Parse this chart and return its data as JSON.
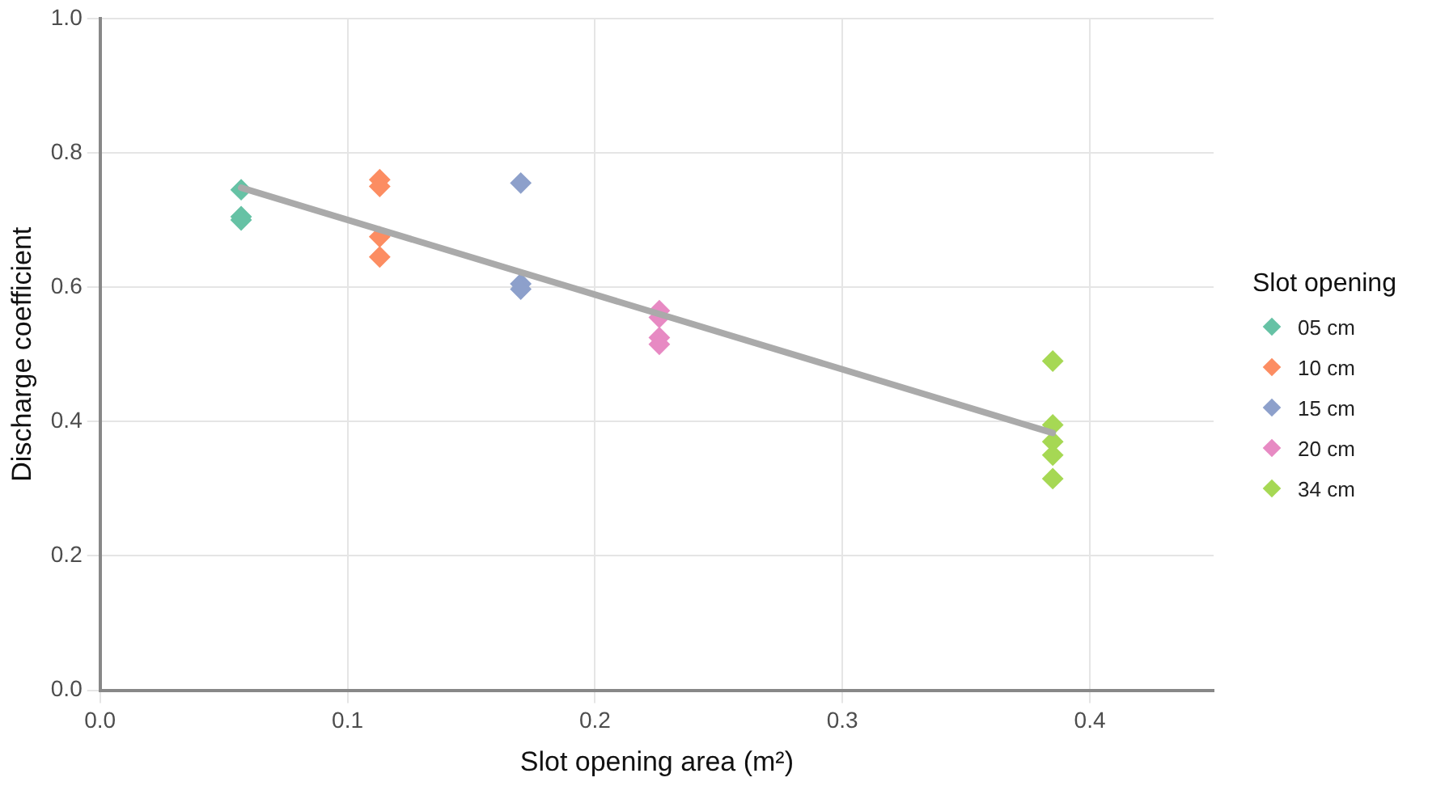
{
  "chart_data": {
    "type": "scatter",
    "xlabel": "Slot opening area (m²)",
    "ylabel": "Discharge coefficient",
    "legend_title": "Slot opening",
    "legend": "right",
    "grid": true,
    "marker": "diamond",
    "xlim": [
      0,
      0.45
    ],
    "xticks": [
      {
        "value": 0,
        "label": "0.0"
      },
      0.1,
      0.2,
      0.3,
      0.4
    ],
    "ylim": [
      0,
      1
    ],
    "yticks": [
      {
        "value": 0,
        "label": "0.0"
      },
      0.2,
      0.4,
      0.6,
      0.8,
      {
        "value": 1,
        "label": "1.0"
      }
    ],
    "series": [
      {
        "name": "05 cm",
        "color": "#66c2a5",
        "x": [
          0.057,
          0.057,
          0.057
        ],
        "values": [
          0.745,
          0.705,
          0.7
        ]
      },
      {
        "name": "10 cm",
        "color": "#fc8d62",
        "x": [
          0.113,
          0.113,
          0.113,
          0.113
        ],
        "values": [
          0.76,
          0.75,
          0.675,
          0.645
        ]
      },
      {
        "name": "15 cm",
        "color": "#8da0cb",
        "x": [
          0.17,
          0.17,
          0.17
        ],
        "values": [
          0.755,
          0.605,
          0.597
        ]
      },
      {
        "name": "20 cm",
        "color": "#e78ac3",
        "x": [
          0.226,
          0.226,
          0.226,
          0.226
        ],
        "values": [
          0.565,
          0.555,
          0.525,
          0.515
        ]
      },
      {
        "name": "34 cm",
        "color": "#a6d854",
        "x": [
          0.385,
          0.385,
          0.385,
          0.385,
          0.385
        ],
        "values": [
          0.49,
          0.395,
          0.37,
          0.35,
          0.315
        ]
      },
      {
        "type": "line",
        "marker": "none",
        "color": "#aaaaaa",
        "x": [
          0.057,
          0.385
        ],
        "values": [
          0.748,
          0.383
        ]
      }
    ]
  }
}
